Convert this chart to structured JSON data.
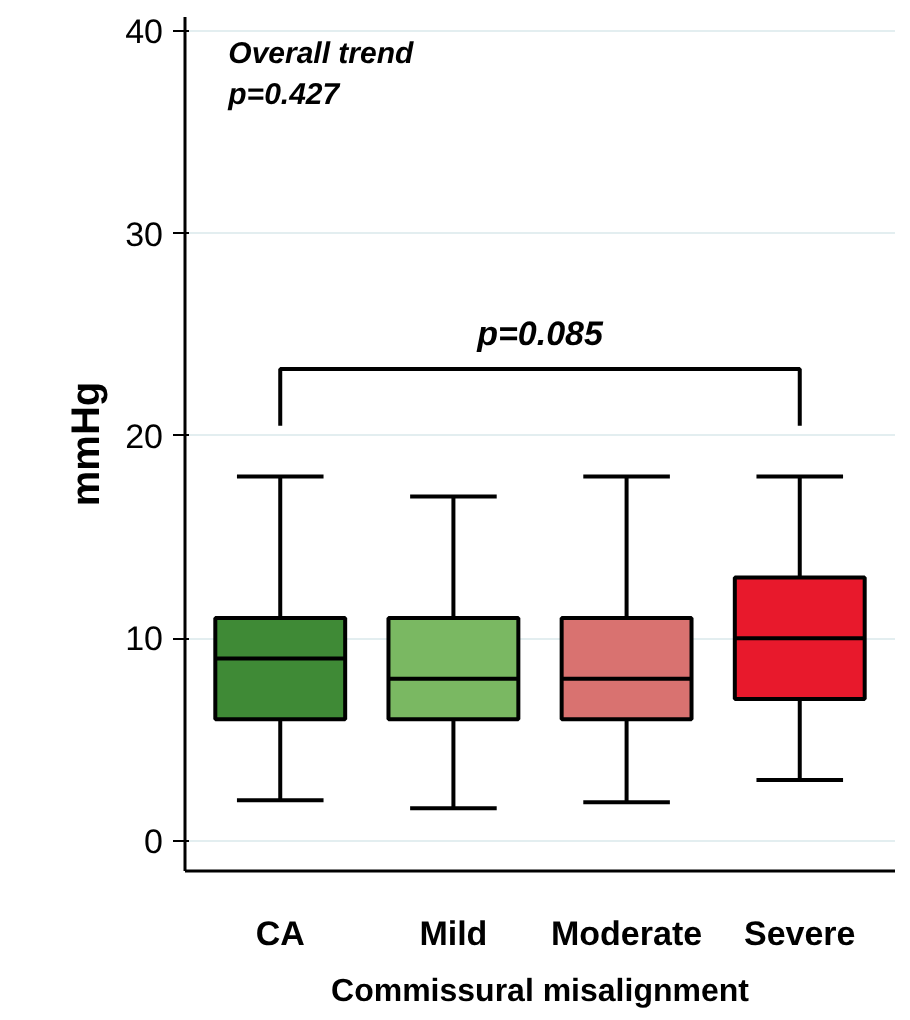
{
  "chart_data": {
    "type": "box",
    "ylabel": "mmHg",
    "xlabel": "Commissural misalignment",
    "categories": [
      "CA",
      "Mild",
      "Moderate",
      "Severe"
    ],
    "colors": [
      "#3f8a36",
      "#7ab862",
      "#d97270",
      "#e8192c"
    ],
    "boxes": [
      {
        "low": 2,
        "q1": 6,
        "median": 9,
        "q3": 11,
        "high": 18
      },
      {
        "low": 1.6,
        "q1": 6,
        "median": 8,
        "q3": 11,
        "high": 17
      },
      {
        "low": 1.9,
        "q1": 6,
        "median": 8,
        "q3": 11,
        "high": 18
      },
      {
        "low": 3,
        "q1": 7,
        "median": 10,
        "q3": 13,
        "high": 18
      }
    ],
    "ylim": [
      -1.5,
      40.7
    ],
    "yticks": [
      0,
      10,
      20,
      30,
      40
    ],
    "grid": "y",
    "annotations": [
      "Overall trend\np=0.427",
      "p=0.085"
    ]
  }
}
